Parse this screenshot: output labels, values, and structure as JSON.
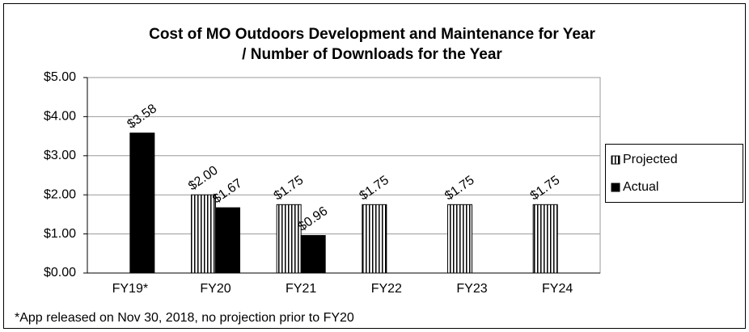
{
  "chart_data": {
    "type": "bar",
    "title": "Cost of MO Outdoors Development and Maintenance for Year / Number of Downloads for the Year",
    "categories": [
      "FY19*",
      "FY20",
      "FY21",
      "FY22",
      "FY23",
      "FY24"
    ],
    "series": [
      {
        "name": "Projected",
        "color": "#ffffff",
        "pattern": "vertical-stripes",
        "values": [
          null,
          2.0,
          1.75,
          1.75,
          1.75,
          1.75
        ],
        "value_labels": [
          null,
          "$2.00",
          "$1.75",
          "$1.75",
          "$1.75",
          "$1.75"
        ]
      },
      {
        "name": "Actual",
        "color": "#000000",
        "values": [
          3.58,
          1.67,
          0.96,
          null,
          null,
          null
        ],
        "value_labels": [
          "$3.58",
          "$1.67",
          "$0.96",
          null,
          null,
          null
        ]
      }
    ],
    "ylim": [
      0,
      5
    ],
    "yticks": [
      {
        "value": 0,
        "label": "$0.00"
      },
      {
        "value": 1,
        "label": "$1.00"
      },
      {
        "value": 2,
        "label": "$2.00"
      },
      {
        "value": 3,
        "label": "$3.00"
      },
      {
        "value": 4,
        "label": "$4.00"
      },
      {
        "value": 5,
        "label": "$5.00"
      }
    ],
    "grid": true,
    "legend": "right",
    "annotation": "*App released on Nov 30, 2018, no projection prior to FY20"
  }
}
